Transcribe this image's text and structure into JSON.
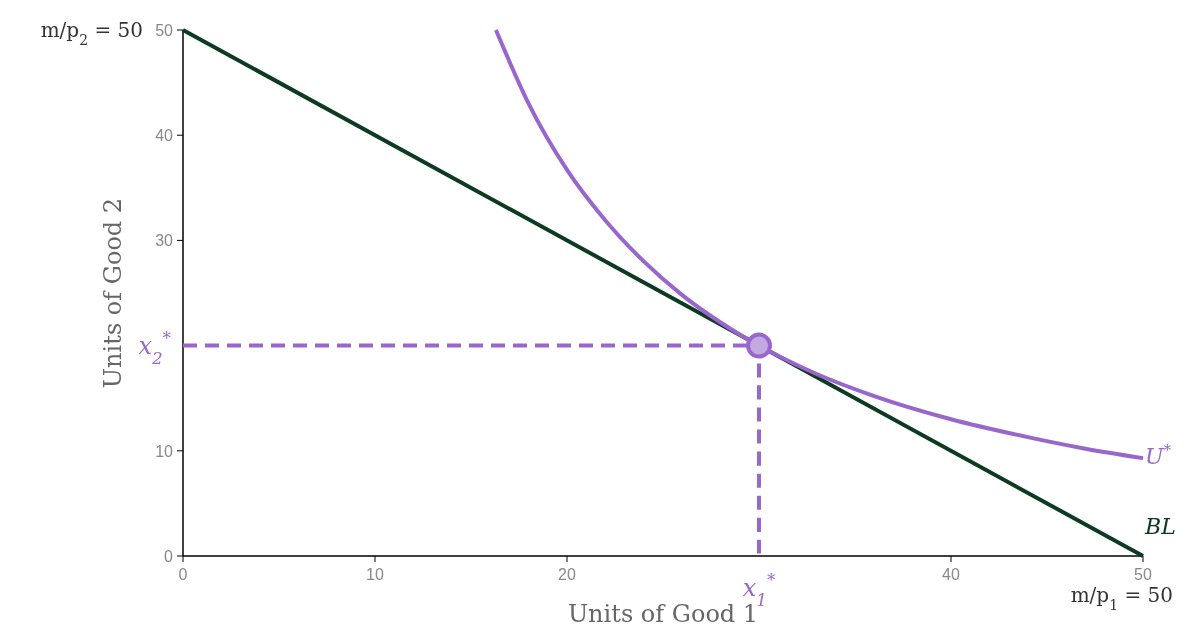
{
  "chart_data": {
    "type": "line",
    "xlabel": "Units of Good 1",
    "ylabel": "Units of Good 2",
    "xlim": [
      0,
      50
    ],
    "ylim": [
      0,
      50
    ],
    "xticks": [
      0,
      10,
      20,
      40,
      50
    ],
    "yticks": [
      0,
      10,
      30,
      40,
      50
    ],
    "grid": false,
    "line_style": "solid",
    "series": [
      {
        "name": "BL",
        "color": "#0d3b22",
        "x": [
          0,
          50
        ],
        "values": [
          50,
          0
        ]
      },
      {
        "name": "U$^{*}$",
        "color": "#9966cc",
        "x": [
          16.3,
          18,
          20,
          22,
          24,
          26,
          28,
          30,
          33,
          36,
          40,
          44,
          47,
          50
        ],
        "values": [
          50,
          43,
          36.7,
          31.9,
          28,
          24.8,
          22.2,
          20,
          17.3,
          15.2,
          13,
          11.3,
          10.2,
          9.3
        ]
      },
      {
        "type": "line",
        "color": "#9966cc",
        "line_style": "dashed",
        "x": [
          0,
          30,
          30
        ],
        "values": [
          20,
          20,
          0
        ]
      },
      {
        "type": "scatter",
        "color": "#9966cc",
        "marker": "circle",
        "x": [
          30
        ],
        "values": [
          20
        ]
      }
    ],
    "annotations": [
      {
        "text": "x$_{1}$$^{*}$",
        "x": 30,
        "y": 0
      },
      {
        "text": "x$_{2}$$^{*}$",
        "x": 0,
        "y": 20
      },
      {
        "text": "m/p$_{2}$ = 50",
        "x": 0,
        "y": 50
      },
      {
        "text": "m/p$_{1}$ = 50",
        "x": 50,
        "y": 0
      }
    ]
  }
}
